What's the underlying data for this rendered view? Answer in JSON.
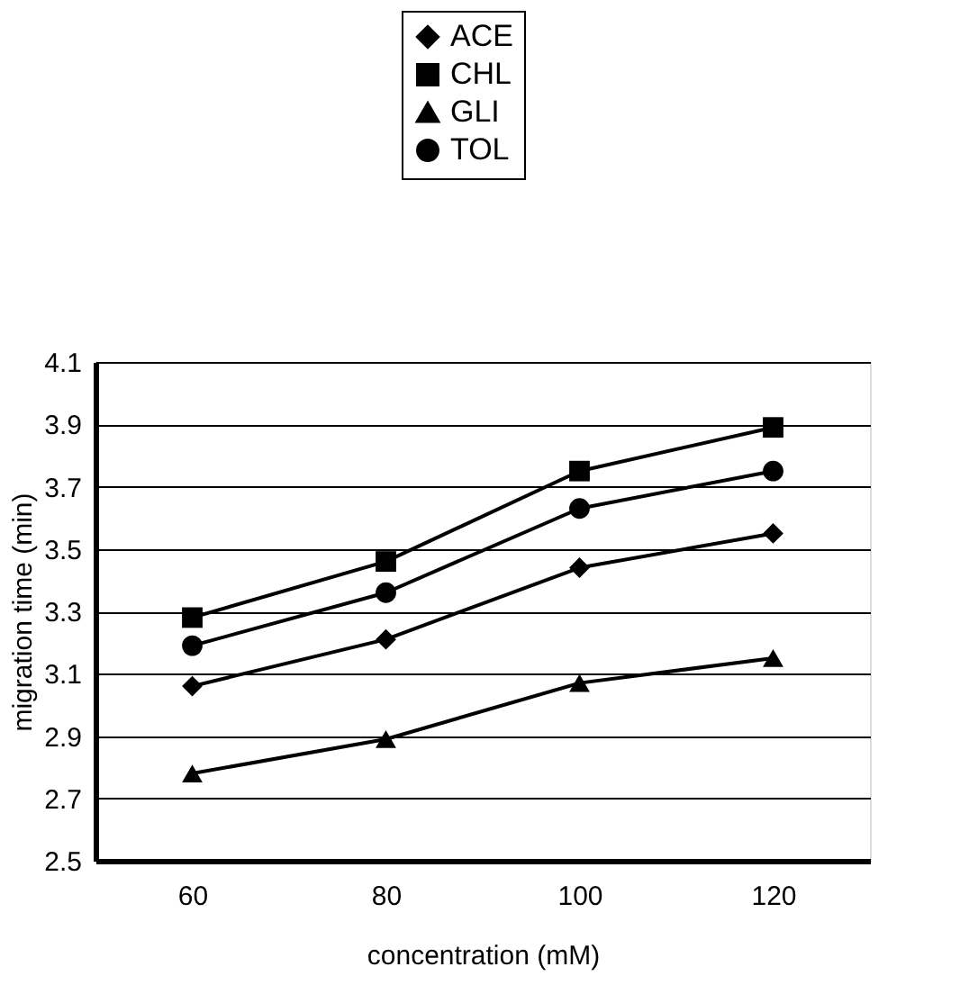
{
  "chart_data": {
    "type": "line",
    "xlabel": "concentration (mM)",
    "ylabel": "migration time (min)",
    "categories": [
      "60",
      "80",
      "100",
      "120"
    ],
    "series": [
      {
        "name": "ACE",
        "color": "#000000",
        "marker": "diamond",
        "values": [
          3.06,
          3.21,
          3.44,
          3.55
        ]
      },
      {
        "name": "CHL",
        "color": "#000000",
        "marker": "square",
        "values": [
          3.28,
          3.46,
          3.75,
          3.89
        ]
      },
      {
        "name": "GLI",
        "color": "#000000",
        "marker": "triangle",
        "values": [
          2.78,
          2.89,
          3.07,
          3.15
        ]
      },
      {
        "name": "TOL",
        "color": "#000000",
        "marker": "circle",
        "values": [
          3.19,
          3.36,
          3.63,
          3.75
        ]
      }
    ],
    "ylim": [
      2.5,
      4.1
    ],
    "yticks": [
      2.5,
      2.7,
      2.9,
      3.1,
      3.3,
      3.5,
      3.7,
      3.9,
      4.1
    ],
    "grid": "y",
    "legend": "top",
    "line_style": "solid"
  }
}
